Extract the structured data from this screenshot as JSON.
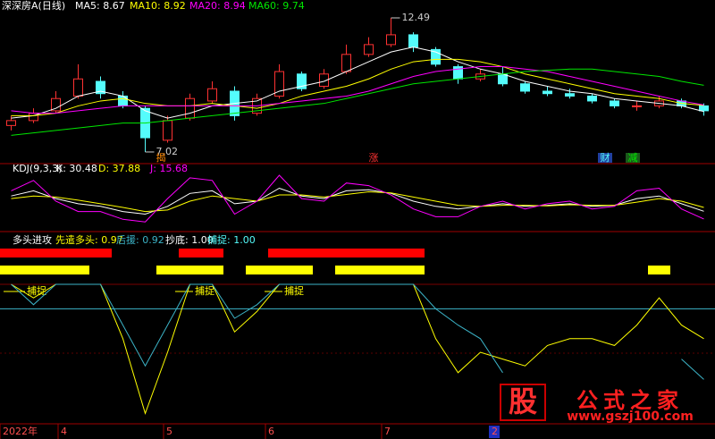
{
  "chart_data": [
    {
      "type": "candlestick",
      "title": "深深房A(日线)",
      "ylim": [
        6.8,
        12.8
      ],
      "up_color": "#ff3232",
      "down_color": "#54fcfc",
      "open": [
        8.1,
        8.3,
        8.7,
        9.3,
        9.9,
        9.3,
        8.8,
        7.5,
        8.4,
        9.1,
        9.5,
        8.6,
        9.3,
        10.2,
        9.7,
        10.3,
        11.0,
        11.4,
        11.8,
        11.2,
        10.5,
        10.0,
        10.2,
        9.8,
        9.5,
        9.4,
        9.3,
        9.1,
        8.9,
        8.9,
        9.1,
        8.9
      ],
      "high": [
        8.5,
        8.8,
        9.5,
        10.6,
        10.1,
        9.5,
        8.9,
        8.5,
        9.4,
        9.9,
        9.7,
        9.4,
        10.6,
        10.3,
        10.4,
        11.4,
        11.7,
        12.49,
        11.9,
        11.3,
        10.6,
        10.4,
        10.5,
        9.9,
        9.7,
        9.6,
        9.4,
        9.2,
        9.1,
        9.3,
        9.2,
        9.0
      ],
      "low": [
        7.9,
        8.2,
        8.6,
        9.2,
        9.2,
        8.8,
        7.02,
        7.4,
        8.3,
        9.0,
        8.3,
        8.5,
        9.2,
        9.5,
        9.6,
        10.2,
        10.9,
        11.3,
        11.1,
        10.5,
        9.8,
        9.9,
        9.7,
        9.4,
        9.3,
        9.2,
        9.0,
        8.8,
        8.7,
        8.8,
        8.8,
        8.5
      ],
      "close": [
        8.3,
        8.6,
        9.2,
        10.0,
        9.4,
        8.9,
        7.6,
        8.3,
        9.2,
        9.6,
        8.5,
        9.2,
        10.3,
        9.6,
        10.2,
        11.0,
        11.4,
        11.8,
        11.3,
        10.6,
        10.0,
        10.2,
        9.8,
        9.5,
        9.4,
        9.3,
        9.1,
        8.9,
        8.9,
        9.1,
        8.9,
        8.7
      ],
      "series": [
        {
          "name": "MA5: 8.67",
          "color": "#ffffff",
          "values": [
            8.4,
            8.5,
            8.8,
            9.3,
            9.5,
            9.3,
            8.7,
            8.4,
            8.6,
            8.9,
            9.0,
            9.1,
            9.5,
            9.7,
            9.9,
            10.3,
            10.7,
            11.1,
            11.3,
            11.1,
            10.7,
            10.4,
            10.2,
            9.9,
            9.7,
            9.5,
            9.4,
            9.2,
            9.1,
            9.0,
            8.9,
            8.67
          ]
        },
        {
          "name": "MA10: 8.92",
          "color": "#ffff00",
          "values": [
            8.5,
            8.5,
            8.6,
            8.9,
            9.1,
            9.2,
            9.0,
            8.9,
            8.9,
            9.0,
            8.9,
            8.8,
            9.0,
            9.3,
            9.5,
            9.7,
            10.0,
            10.4,
            10.7,
            10.8,
            10.8,
            10.7,
            10.5,
            10.2,
            10.0,
            9.8,
            9.6,
            9.4,
            9.3,
            9.2,
            9.0,
            8.92
          ]
        },
        {
          "name": "MA20: 8.94",
          "color": "#ff00ff",
          "values": [
            8.7,
            8.6,
            8.6,
            8.7,
            8.8,
            8.9,
            8.9,
            8.9,
            8.9,
            8.9,
            8.9,
            8.9,
            9.0,
            9.1,
            9.2,
            9.3,
            9.5,
            9.8,
            10.1,
            10.3,
            10.4,
            10.5,
            10.5,
            10.4,
            10.3,
            10.1,
            9.9,
            9.7,
            9.5,
            9.3,
            9.1,
            8.94
          ]
        },
        {
          "name": "MA60: 9.74",
          "color": "#00e600",
          "values": [
            7.7,
            7.8,
            7.9,
            8.0,
            8.1,
            8.2,
            8.2,
            8.3,
            8.4,
            8.5,
            8.6,
            8.7,
            8.8,
            8.9,
            9.0,
            9.2,
            9.4,
            9.6,
            9.8,
            9.9,
            10.0,
            10.1,
            10.2,
            10.3,
            10.35,
            10.4,
            10.4,
            10.3,
            10.2,
            10.1,
            9.9,
            9.74
          ]
        }
      ],
      "markers": [
        "揭",
        "涨",
        "财",
        "减"
      ],
      "x_labels": [
        "2022年",
        "4",
        "5",
        "6",
        "7",
        "2"
      ]
    },
    {
      "type": "line",
      "title": "KDJ(9,3,3)",
      "ylim": [
        0,
        100
      ],
      "series": [
        {
          "name": "K: 30.48",
          "color": "#ffffff",
          "values": [
            60,
            70,
            55,
            45,
            40,
            30,
            25,
            40,
            65,
            70,
            45,
            50,
            75,
            60,
            55,
            70,
            72,
            65,
            50,
            40,
            35,
            40,
            45,
            40,
            42,
            45,
            40,
            42,
            55,
            60,
            45,
            30.48
          ]
        },
        {
          "name": "D: 37.88",
          "color": "#ffff00",
          "values": [
            55,
            60,
            58,
            52,
            45,
            38,
            30,
            33,
            50,
            60,
            55,
            50,
            62,
            62,
            58,
            63,
            68,
            66,
            58,
            50,
            42,
            40,
            42,
            42,
            41,
            43,
            42,
            42,
            48,
            55,
            50,
            37.88
          ]
        },
        {
          "name": "J: 15.68",
          "color": "#ff00ff",
          "values": [
            70,
            90,
            50,
            30,
            30,
            15,
            10,
            55,
            95,
            90,
            25,
            50,
            100,
            55,
            50,
            85,
            80,
            62,
            35,
            20,
            20,
            40,
            50,
            35,
            45,
            50,
            35,
            40,
            70,
            75,
            35,
            15.68
          ]
        }
      ]
    },
    {
      "type": "signal",
      "title": "多头进攻",
      "ylim": [
        0,
        1
      ],
      "reference_level": 0.82,
      "reference_color": "#3cb4c8",
      "series": [
        {
          "name": "先遣多头: 0.97",
          "color": "#ffff00",
          "values": [
            1,
            0.9,
            1,
            1,
            1,
            0.6,
            0.05,
            0.5,
            1,
            1,
            0.65,
            0.8,
            1,
            1,
            1,
            1,
            1,
            1,
            1,
            0.6,
            0.35,
            0.5,
            0.45,
            0.4,
            0.55,
            0.6,
            0.6,
            0.55,
            0.7,
            0.9,
            0.7,
            0.6
          ]
        },
        {
          "name": "后援: 0.92",
          "color": "#3cb4c8",
          "values": [
            1,
            0.85,
            1,
            1,
            1,
            0.7,
            0.4,
            0.7,
            1,
            1,
            0.75,
            0.85,
            1,
            1,
            1,
            1,
            1,
            1,
            1,
            0.82,
            0.7,
            0.6,
            0.35,
            null,
            null,
            null,
            null,
            null,
            null,
            null,
            0.45,
            0.3
          ]
        }
      ],
      "bars": [
        {
          "name": "抄底: 1.00",
          "color": "#ff0000",
          "legend_color": "#ffffff",
          "values": [
            1,
            1,
            1,
            1,
            1,
            0,
            0,
            0,
            1,
            1,
            0,
            0,
            1,
            1,
            1,
            1,
            1,
            1,
            1,
            0,
            0,
            0,
            0,
            0,
            0,
            0,
            0,
            0,
            0,
            0,
            0,
            0
          ]
        },
        {
          "name": "捕捉: 1.00",
          "color": "#ffff00",
          "legend_color": "#54fcfc",
          "values": [
            1,
            1,
            1,
            1,
            0,
            0,
            0,
            1,
            1,
            1,
            0,
            1,
            1,
            1,
            0,
            1,
            1,
            1,
            1,
            0,
            0,
            0,
            0,
            0,
            0,
            0,
            0,
            0,
            0,
            1,
            0,
            0
          ]
        }
      ],
      "signal_label": "捕捉"
    }
  ],
  "watermark": {
    "logo": "股",
    "name": "公式之家",
    "url": "www.gszj100.com"
  }
}
